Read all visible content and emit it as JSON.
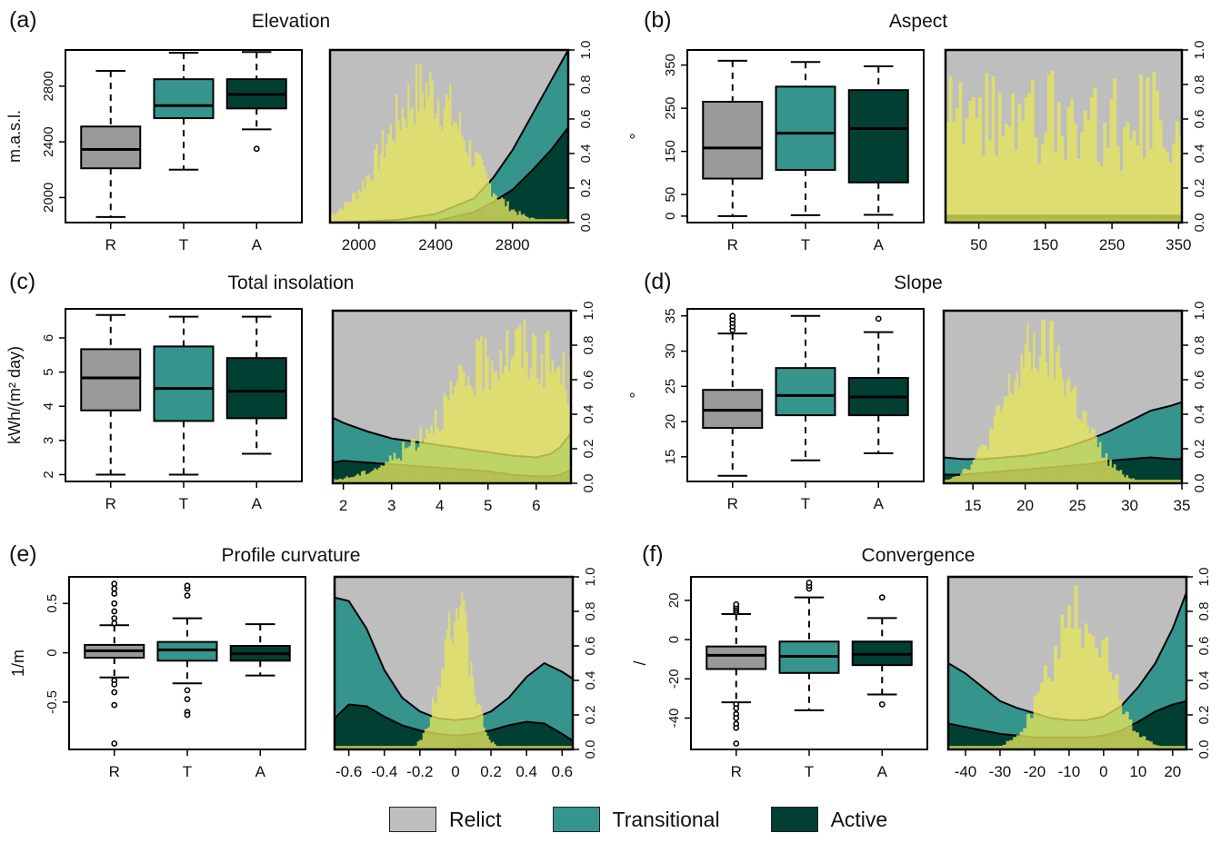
{
  "colors": {
    "relict": "#bebebe",
    "relict_box": "#999999",
    "transitional": "#35958d",
    "active": "#023f33",
    "histogram": "#e6e65c",
    "frame": "#000000"
  },
  "legend": [
    {
      "key": "relict",
      "label": "Relict"
    },
    {
      "key": "transitional",
      "label": "Transitional"
    },
    {
      "key": "active",
      "label": "Active"
    }
  ],
  "chart_data": [
    {
      "panel": "(a)",
      "title": "Elevation",
      "boxplot": {
        "type": "box",
        "ylabel": "m.a.s.l.",
        "ylim": [
          1820,
          3060
        ],
        "yticks": [
          2000,
          2400,
          2800
        ],
        "categories": [
          "R",
          "T",
          "A"
        ],
        "series": [
          {
            "name": "R",
            "min": 1860,
            "q1": 2210,
            "median": 2345,
            "q3": 2510,
            "max": 2910,
            "outliers": []
          },
          {
            "name": "T",
            "min": 2200,
            "q1": 2570,
            "median": 2660,
            "q3": 2850,
            "max": 3040,
            "outliers": []
          },
          {
            "name": "A",
            "min": 2490,
            "q1": 2640,
            "median": 2740,
            "q3": 2850,
            "max": 3045,
            "outliers": [
              2350
            ]
          }
        ]
      },
      "proportion": {
        "type": "area",
        "xlim": [
          1850,
          3090
        ],
        "xticks": [
          2000,
          2400,
          2800
        ],
        "ylim": [
          0,
          1
        ],
        "yticks": [
          0.0,
          0.2,
          0.4,
          0.6,
          0.8,
          1.0
        ],
        "x": [
          1850,
          2000,
          2200,
          2400,
          2600,
          2700,
          2800,
          2900,
          3000,
          3090
        ],
        "transitional_upper": [
          0.0,
          0.005,
          0.015,
          0.05,
          0.14,
          0.26,
          0.42,
          0.62,
          0.82,
          1.0
        ],
        "active_upper": [
          0.0,
          0.0,
          0.0,
          0.01,
          0.06,
          0.12,
          0.19,
          0.3,
          0.42,
          0.55
        ],
        "histogram_bins": 120,
        "histogram_peak_x": 2350,
        "histogram_spread": 210,
        "histogram_max": 0.93
      }
    },
    {
      "panel": "(b)",
      "title": "Aspect",
      "boxplot": {
        "type": "box",
        "ylabel": "°",
        "ylim": [
          -15,
          385
        ],
        "yticks": [
          0,
          50,
          150,
          250,
          350
        ],
        "categories": [
          "R",
          "T",
          "A"
        ],
        "series": [
          {
            "name": "R",
            "min": 0,
            "q1": 87,
            "median": 158,
            "q3": 265,
            "max": 360,
            "outliers": []
          },
          {
            "name": "T",
            "min": 2,
            "q1": 107,
            "median": 192,
            "q3": 300,
            "max": 357,
            "outliers": []
          },
          {
            "name": "A",
            "min": 3,
            "q1": 78,
            "median": 203,
            "q3": 292,
            "max": 347,
            "outliers": []
          }
        ]
      },
      "proportion": {
        "type": "area",
        "xlim": [
          0,
          355
        ],
        "xticks": [
          50,
          150,
          250,
          350
        ],
        "ylim": [
          0,
          1
        ],
        "yticks": [
          0.0,
          0.2,
          0.4,
          0.6,
          0.8,
          1.0
        ],
        "x": [
          0,
          50,
          100,
          150,
          200,
          250,
          300,
          355
        ],
        "transitional_upper": [
          0.04,
          0.04,
          0.04,
          0.04,
          0.04,
          0.04,
          0.04,
          0.04
        ],
        "active_upper": [
          0.03,
          0.03,
          0.03,
          0.03,
          0.03,
          0.03,
          0.03,
          0.03
        ],
        "hist_band_lines": [
          [
            0.22,
            0.18,
            0.16,
            0.17,
            0.22,
            0.24,
            0.23,
            0.28
          ],
          [
            0.1,
            0.08,
            0.07,
            0.06,
            0.08,
            0.11,
            0.1,
            0.1
          ]
        ],
        "histogram_bins": 72,
        "histogram_peak_x": 175,
        "histogram_spread": 9999,
        "histogram_max": 0.95
      }
    },
    {
      "panel": "(c)",
      "title": "Total insolation",
      "boxplot": {
        "type": "box",
        "ylabel": "kWh/(m² day)",
        "ylim": [
          1.8,
          6.85
        ],
        "yticks": [
          2,
          3,
          4,
          5,
          6
        ],
        "categories": [
          "R",
          "T",
          "A"
        ],
        "series": [
          {
            "name": "R",
            "min": 2.0,
            "q1": 3.88,
            "median": 4.83,
            "q3": 5.67,
            "max": 6.67,
            "outliers": []
          },
          {
            "name": "T",
            "min": 2.0,
            "q1": 3.57,
            "median": 4.52,
            "q3": 5.75,
            "max": 6.62,
            "outliers": []
          },
          {
            "name": "A",
            "min": 2.61,
            "q1": 3.65,
            "median": 4.44,
            "q3": 5.41,
            "max": 6.62,
            "outliers": []
          }
        ]
      },
      "proportion": {
        "type": "area",
        "xlim": [
          1.78,
          6.72
        ],
        "xticks": [
          2,
          3,
          4,
          5,
          6
        ],
        "ylim": [
          0,
          1
        ],
        "yticks": [
          0.0,
          0.2,
          0.4,
          0.6,
          0.8,
          1.0
        ],
        "x": [
          1.78,
          2.0,
          2.5,
          3.0,
          3.5,
          4.0,
          4.5,
          5.0,
          5.5,
          6.0,
          6.3,
          6.5,
          6.72
        ],
        "transitional_upper": [
          0.38,
          0.35,
          0.3,
          0.26,
          0.24,
          0.22,
          0.2,
          0.18,
          0.16,
          0.15,
          0.17,
          0.21,
          0.29
        ],
        "active_upper": [
          0.12,
          0.13,
          0.12,
          0.11,
          0.1,
          0.09,
          0.08,
          0.07,
          0.05,
          0.04,
          0.04,
          0.05,
          0.08
        ],
        "histogram_bins": 110,
        "histogram_peak_x": 5.6,
        "histogram_spread": 1.4,
        "histogram_max": 0.95
      }
    },
    {
      "panel": "(d)",
      "title": "Slope",
      "boxplot": {
        "type": "box",
        "ylabel": "°",
        "ylim": [
          11.5,
          36
        ],
        "yticks": [
          15,
          20,
          25,
          30,
          35
        ],
        "categories": [
          "R",
          "T",
          "A"
        ],
        "series": [
          {
            "name": "R",
            "min": 12.3,
            "q1": 19.1,
            "median": 21.6,
            "q3": 24.5,
            "max": 32.5,
            "outliers": [
              33,
              33.5,
              34,
              34.5,
              35
            ]
          },
          {
            "name": "T",
            "min": 14.5,
            "q1": 20.9,
            "median": 23.7,
            "q3": 27.6,
            "max": 35.0,
            "outliers": []
          },
          {
            "name": "A",
            "min": 15.5,
            "q1": 20.9,
            "median": 23.5,
            "q3": 26.2,
            "max": 32.7,
            "outliers": [
              34.6
            ]
          }
        ]
      },
      "proportion": {
        "type": "area",
        "xlim": [
          12.2,
          35
        ],
        "xticks": [
          15,
          20,
          25,
          30,
          35
        ],
        "ylim": [
          0,
          1
        ],
        "yticks": [
          0.0,
          0.2,
          0.4,
          0.6,
          0.8,
          1.0
        ],
        "x": [
          12.2,
          14,
          16,
          18,
          20,
          22,
          24,
          26,
          28,
          30,
          32,
          34,
          35
        ],
        "transitional_upper": [
          0.15,
          0.14,
          0.14,
          0.15,
          0.16,
          0.18,
          0.21,
          0.25,
          0.3,
          0.36,
          0.42,
          0.45,
          0.47
        ],
        "active_upper": [
          0.05,
          0.05,
          0.06,
          0.07,
          0.08,
          0.09,
          0.1,
          0.11,
          0.13,
          0.14,
          0.15,
          0.14,
          0.14
        ],
        "histogram_bins": 115,
        "histogram_peak_x": 21.5,
        "histogram_spread": 3.4,
        "histogram_max": 0.95
      }
    },
    {
      "panel": "(e)",
      "title": "Profile curvature",
      "boxplot": {
        "type": "box",
        "ylabel": "1/m",
        "ylim": [
          -0.98,
          0.77
        ],
        "yticks": [
          -0.5,
          0.0,
          0.5
        ],
        "categories": [
          "R",
          "T",
          "A"
        ],
        "series": [
          {
            "name": "R",
            "min": -0.25,
            "q1": -0.05,
            "median": 0.02,
            "q3": 0.08,
            "max": 0.28,
            "outliers": [
              0.3,
              0.35,
              0.42,
              0.5,
              0.6,
              0.65,
              0.7,
              -0.28,
              -0.32,
              -0.4,
              -0.53,
              -0.92
            ]
          },
          {
            "name": "T",
            "min": -0.31,
            "q1": -0.08,
            "median": 0.03,
            "q3": 0.11,
            "max": 0.35,
            "outliers": [
              0.58,
              0.65,
              0.68,
              -0.38,
              -0.47,
              -0.6,
              -0.63
            ]
          },
          {
            "name": "A",
            "min": -0.23,
            "q1": -0.08,
            "median": -0.01,
            "q3": 0.07,
            "max": 0.29,
            "outliers": []
          }
        ]
      },
      "proportion": {
        "type": "area",
        "xlim": [
          -0.68,
          0.66
        ],
        "xticks": [
          -0.6,
          -0.4,
          -0.2,
          0.0,
          0.2,
          0.4,
          0.6
        ],
        "ylim": [
          0,
          1
        ],
        "yticks": [
          0.0,
          0.2,
          0.4,
          0.6,
          0.8,
          1.0
        ],
        "x": [
          -0.68,
          -0.6,
          -0.5,
          -0.4,
          -0.3,
          -0.2,
          -0.1,
          0.0,
          0.1,
          0.2,
          0.3,
          0.4,
          0.5,
          0.6,
          0.66
        ],
        "transitional_upper": [
          0.88,
          0.86,
          0.7,
          0.46,
          0.3,
          0.22,
          0.18,
          0.17,
          0.18,
          0.22,
          0.3,
          0.42,
          0.5,
          0.45,
          0.41
        ],
        "active_upper": [
          0.18,
          0.26,
          0.25,
          0.19,
          0.14,
          0.11,
          0.09,
          0.08,
          0.09,
          0.11,
          0.14,
          0.16,
          0.15,
          0.09,
          0.05
        ],
        "histogram_bins": 130,
        "histogram_peak_x": 0.0,
        "histogram_spread": 0.085,
        "histogram_max": 0.97
      }
    },
    {
      "panel": "(f)",
      "title": "Convergence",
      "boxplot": {
        "type": "box",
        "ylabel": "/",
        "ylim": [
          -56,
          32
        ],
        "yticks": [
          -40,
          -20,
          0,
          20
        ],
        "categories": [
          "R",
          "T",
          "A"
        ],
        "series": [
          {
            "name": "R",
            "min": -32,
            "q1": -15,
            "median": -8,
            "q3": -3.5,
            "max": 13,
            "outliers": [
              14,
              15,
              16,
              17,
              18,
              -33,
              -35,
              -38,
              -40,
              -43,
              -45,
              -53
            ]
          },
          {
            "name": "T",
            "min": -36,
            "q1": -17,
            "median": -8.5,
            "q3": -1,
            "max": 21.5,
            "outliers": [
              26,
              27.5,
              29
            ]
          },
          {
            "name": "A",
            "min": -28,
            "q1": -13,
            "median": -7.5,
            "q3": -1,
            "max": 11,
            "outliers": [
              21.5,
              -33
            ]
          }
        ]
      },
      "proportion": {
        "type": "area",
        "xlim": [
          -45,
          24
        ],
        "xticks": [
          -40,
          -30,
          -20,
          -10,
          0,
          10,
          20
        ],
        "ylim": [
          0,
          1
        ],
        "yticks": [
          0.0,
          0.2,
          0.4,
          0.6,
          0.8,
          1.0
        ],
        "x": [
          -45,
          -40,
          -35,
          -30,
          -25,
          -20,
          -15,
          -10,
          -5,
          0,
          5,
          10,
          15,
          20,
          24
        ],
        "transitional_upper": [
          0.5,
          0.44,
          0.36,
          0.28,
          0.24,
          0.21,
          0.18,
          0.17,
          0.17,
          0.19,
          0.25,
          0.36,
          0.5,
          0.7,
          0.91
        ],
        "active_upper": [
          0.15,
          0.13,
          0.11,
          0.09,
          0.08,
          0.07,
          0.07,
          0.07,
          0.07,
          0.08,
          0.11,
          0.16,
          0.22,
          0.26,
          0.28
        ],
        "histogram_bins": 70,
        "histogram_peak_x": -7,
        "histogram_spread": 8.5,
        "histogram_max": 0.95
      }
    }
  ]
}
